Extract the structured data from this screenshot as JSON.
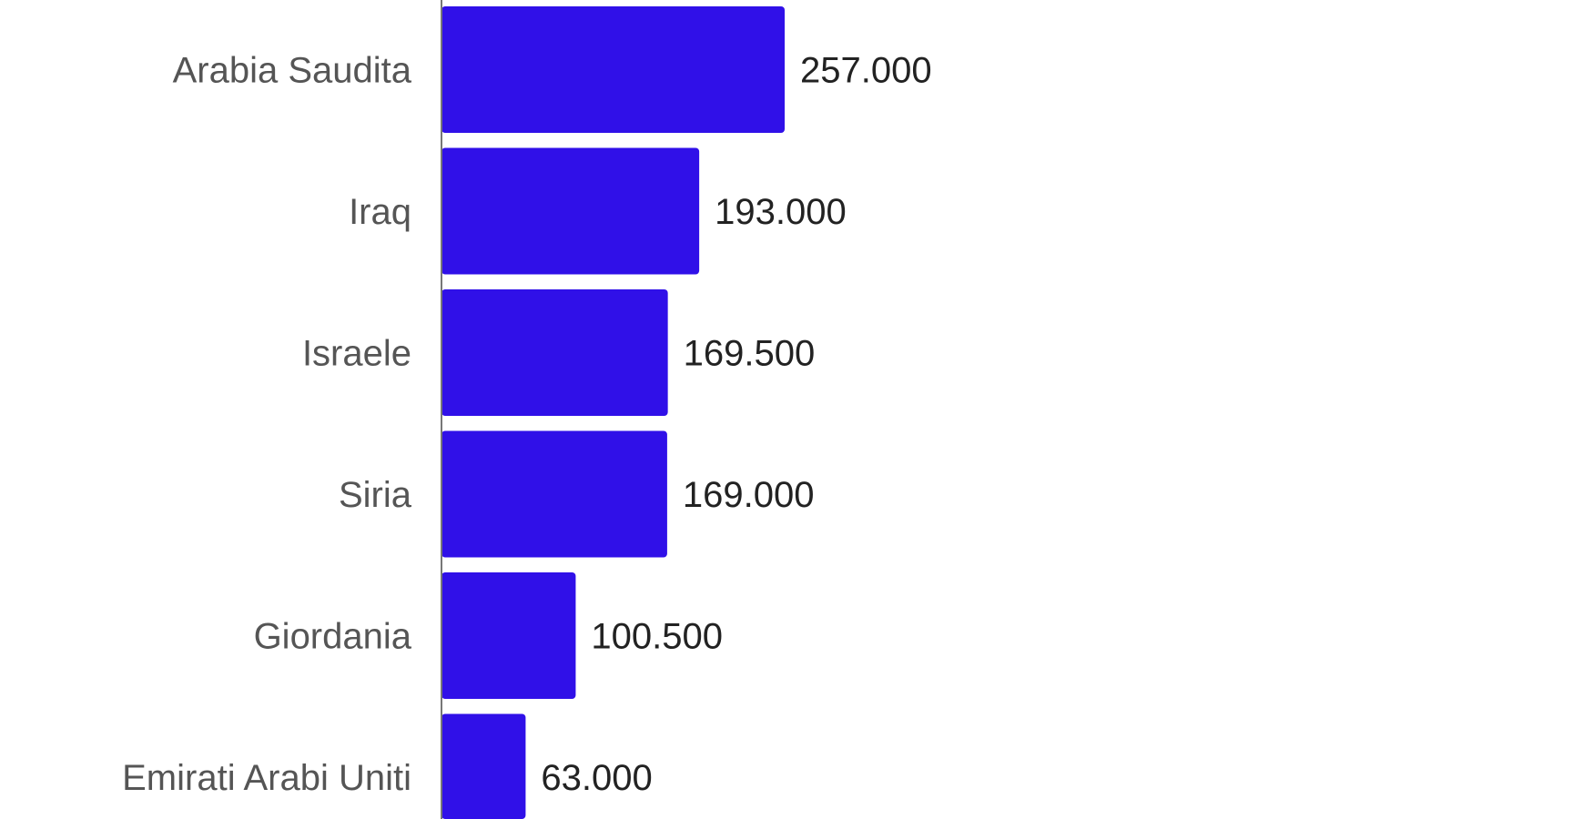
{
  "chart_data": {
    "type": "bar",
    "orientation": "horizontal",
    "categories": [
      "Arabia Saudita",
      "Iraq",
      "Israele",
      "Siria",
      "Giordania",
      "Emirati Arabi Uniti"
    ],
    "values": [
      257000,
      193000,
      169500,
      169000,
      100500,
      63000
    ],
    "data_labels": [
      "257.000",
      "193.000",
      "169.500",
      "169.000",
      "100.500",
      "63.000"
    ],
    "title": "",
    "xlabel": "",
    "ylabel": "",
    "grid": false,
    "legend": "none",
    "colors": {
      "bar": "#3010E8",
      "axis": "#777777"
    }
  }
}
